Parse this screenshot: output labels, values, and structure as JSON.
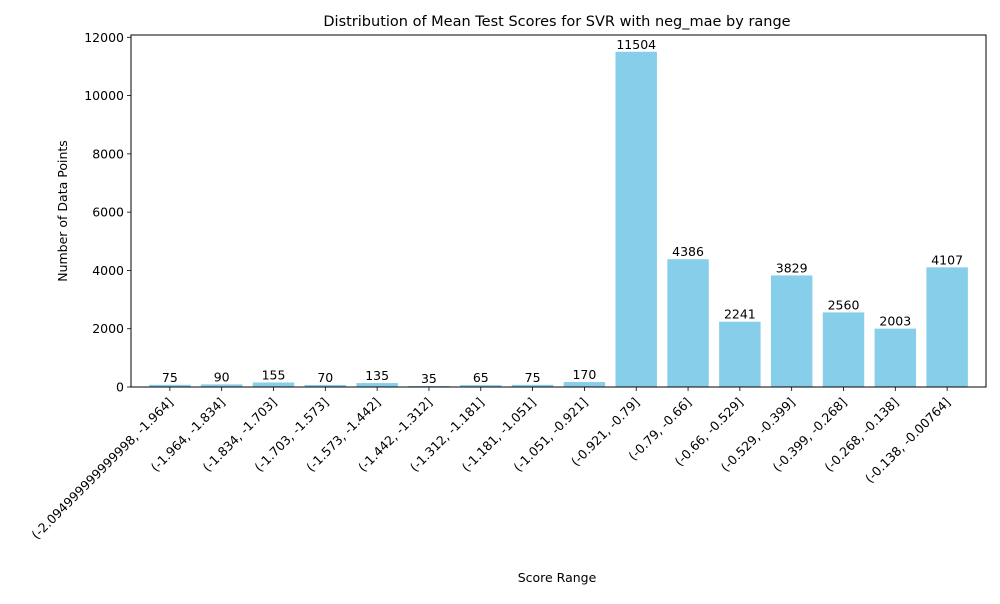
{
  "chart_data": {
    "type": "bar",
    "title": "Distribution of Mean Test Scores for SVR with neg_mae by range",
    "xlabel": "Score Range",
    "ylabel": "Number of Data Points",
    "categories": [
      "(-2.094999999999998, -1.964]",
      "(-1.964, -1.834]",
      "(-1.834, -1.703]",
      "(-1.703, -1.573]",
      "(-1.573, -1.442]",
      "(-1.442, -1.312]",
      "(-1.312, -1.181]",
      "(-1.181, -1.051]",
      "(-1.051, -0.921]",
      "(-0.921, -0.79]",
      "(-0.79, -0.66]",
      "(-0.66, -0.529]",
      "(-0.529, -0.399]",
      "(-0.399, -0.268]",
      "(-0.268, -0.138]",
      "(-0.138, -0.00764]"
    ],
    "values": [
      75,
      90,
      155,
      70,
      135,
      35,
      65,
      75,
      170,
      11504,
      4386,
      2241,
      3829,
      2560,
      2003,
      4107
    ],
    "ylim": [
      0,
      12079
    ],
    "yticks": [
      0,
      2000,
      4000,
      6000,
      8000,
      10000,
      12000
    ],
    "bar_color": "#87ceeb",
    "grid": false,
    "legend": "none"
  }
}
